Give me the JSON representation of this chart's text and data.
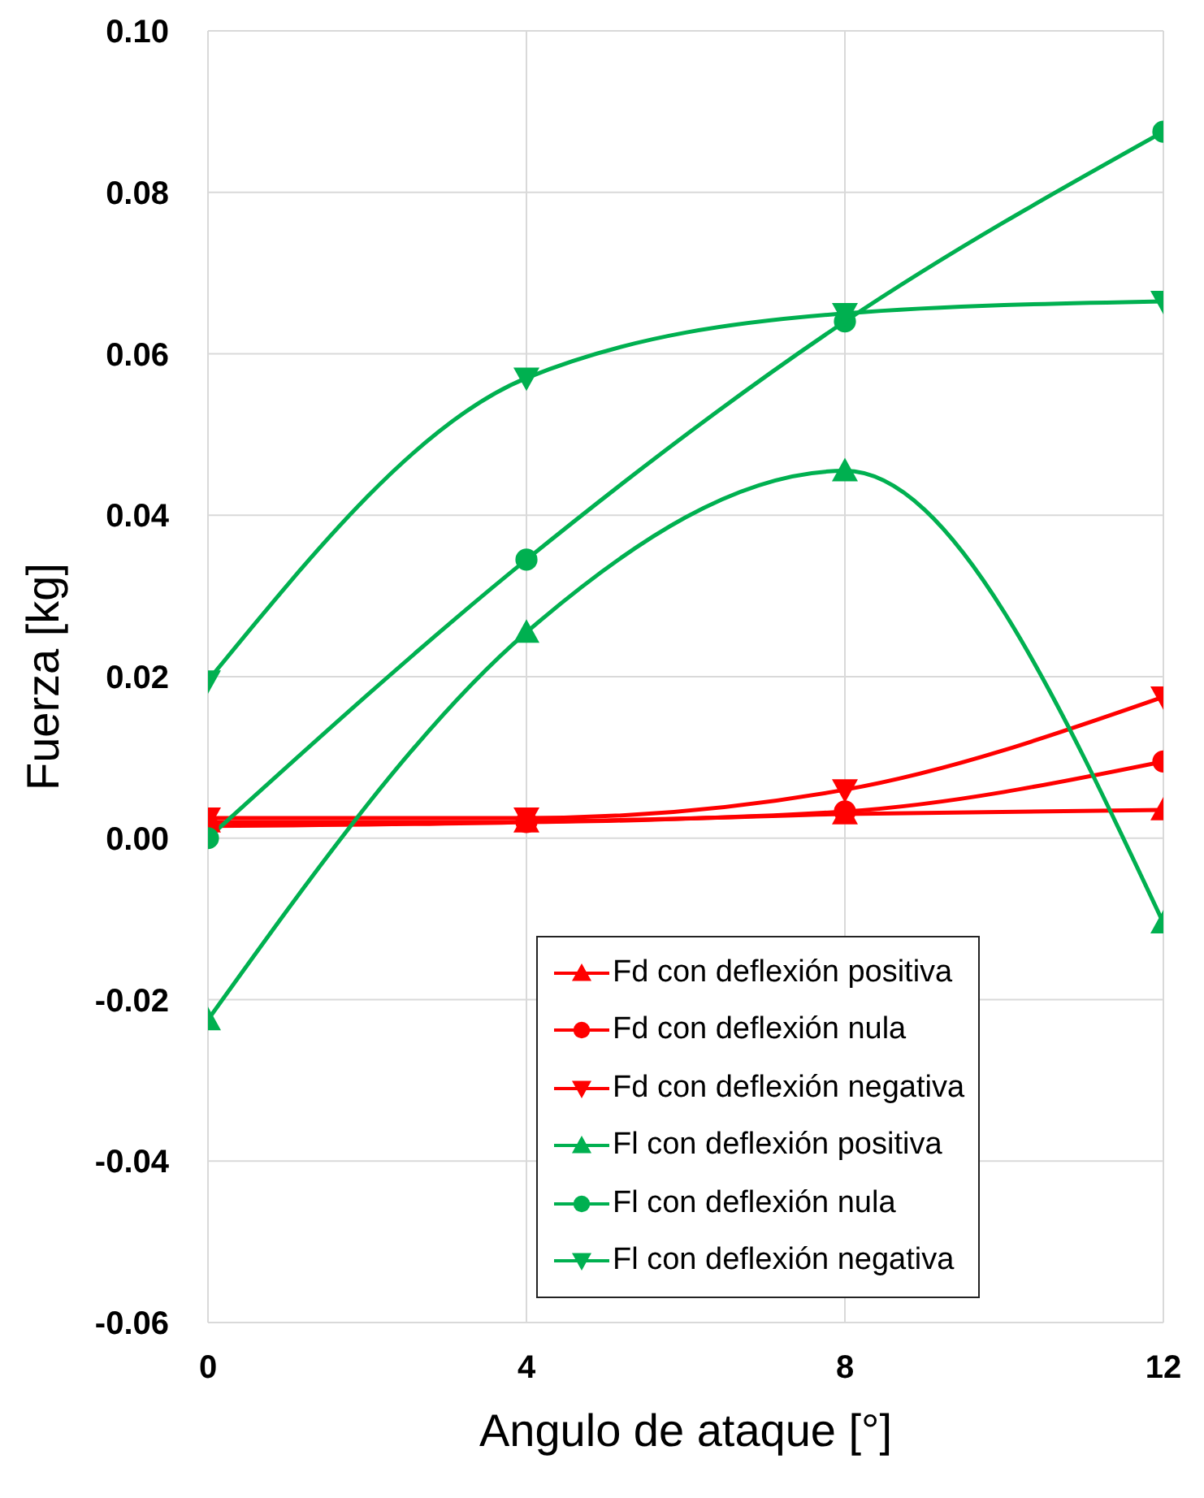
{
  "chart_data": {
    "type": "line",
    "xlabel": "Angulo de ataque [°]",
    "ylabel": "Fuerza [kg]",
    "x": [
      0,
      4,
      8,
      12
    ],
    "xlim": [
      0,
      12
    ],
    "xticks": [
      0,
      4,
      8,
      12
    ],
    "ylim": [
      -0.06,
      0.1
    ],
    "yticks": [
      {
        "value": -0.06,
        "label": "-0.06"
      },
      {
        "value": -0.04,
        "label": "-0.04"
      },
      {
        "value": -0.02,
        "label": "-0.02"
      },
      {
        "value": 0,
        "label": "0.00"
      },
      {
        "value": 0.02,
        "label": "0.02"
      },
      {
        "value": 0.04,
        "label": "0.04"
      },
      {
        "value": 0.06,
        "label": "0.06"
      },
      {
        "value": 0.08,
        "label": "0.08"
      },
      {
        "value": 0.1,
        "label": "0.10"
      }
    ],
    "grid": true,
    "legend": "bottom right",
    "line_style": "solid",
    "series": [
      {
        "name": "Fd con deflexión positiva",
        "color": "#ff0000",
        "marker": "triangle",
        "values": [
          0.002,
          0.002,
          0.003,
          0.0035
        ]
      },
      {
        "name": "Fd con deflexión nula",
        "color": "#ff0000",
        "marker": "circle",
        "values": [
          0.0015,
          0.002,
          0.0033,
          0.0095
        ]
      },
      {
        "name": "Fd con deflexión negativa",
        "color": "#ff0000",
        "marker": "triangle_down",
        "values": [
          0.0025,
          0.0025,
          0.006,
          0.0175
        ]
      },
      {
        "name": "Fl con deflexión positiva",
        "color": "#00b050",
        "marker": "triangle",
        "values": [
          -0.0225,
          0.0255,
          0.0455,
          -0.0105
        ]
      },
      {
        "name": "Fl con deflexión nula",
        "color": "#00b050",
        "marker": "circle",
        "values": [
          0.0,
          0.0345,
          0.064,
          0.0875
        ]
      },
      {
        "name": "Fl con deflexión negativa",
        "color": "#00b050",
        "marker": "triangle_down",
        "values": [
          0.0195,
          0.057,
          0.065,
          0.0665
        ]
      }
    ]
  }
}
